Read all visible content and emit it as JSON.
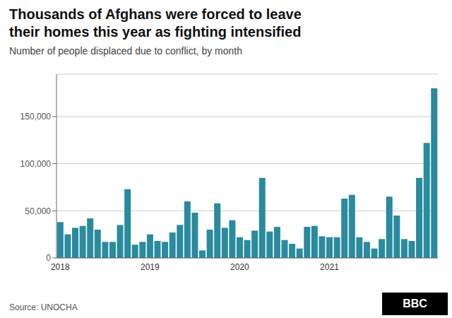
{
  "chart_data": {
    "type": "bar",
    "title": "Thousands of Afghans were forced to leave\ntheir homes this year as fighting intensified",
    "subtitle": "Number of people displaced due to conflict, by month",
    "annotations": [
      "Source: UNOCHA",
      "BBC"
    ],
    "categories": [
      "2018",
      null,
      null,
      null,
      null,
      null,
      null,
      null,
      null,
      null,
      null,
      null,
      "2019",
      null,
      null,
      null,
      null,
      null,
      null,
      null,
      null,
      null,
      null,
      null,
      "2020",
      null,
      null,
      null,
      null,
      null,
      null,
      null,
      null,
      null,
      null,
      null,
      "2021",
      null,
      null,
      null,
      null,
      null,
      null,
      null,
      null,
      null,
      null,
      null,
      null,
      null,
      null
    ],
    "values": [
      38000,
      25000,
      32000,
      34000,
      42000,
      30000,
      17000,
      17000,
      35000,
      73000,
      14000,
      17000,
      25000,
      18000,
      17000,
      27000,
      35000,
      60000,
      48000,
      8000,
      30000,
      58000,
      32000,
      40000,
      22000,
      19000,
      29000,
      85000,
      28000,
      33000,
      19000,
      15000,
      10000,
      33000,
      34000,
      23000,
      22000,
      22000,
      63000,
      67000,
      22000,
      17000,
      10000,
      20000,
      65000,
      45000,
      20000,
      18000,
      85000,
      122000,
      180000
    ],
    "color": "#2a8a9e",
    "ylim": [
      0,
      195000
    ],
    "yticks": [
      0,
      {
        "value": 50000,
        "label": "50,000"
      },
      {
        "value": 100000,
        "label": "100,000"
      },
      {
        "value": 150000,
        "label": "150,000"
      }
    ],
    "grid": true
  }
}
